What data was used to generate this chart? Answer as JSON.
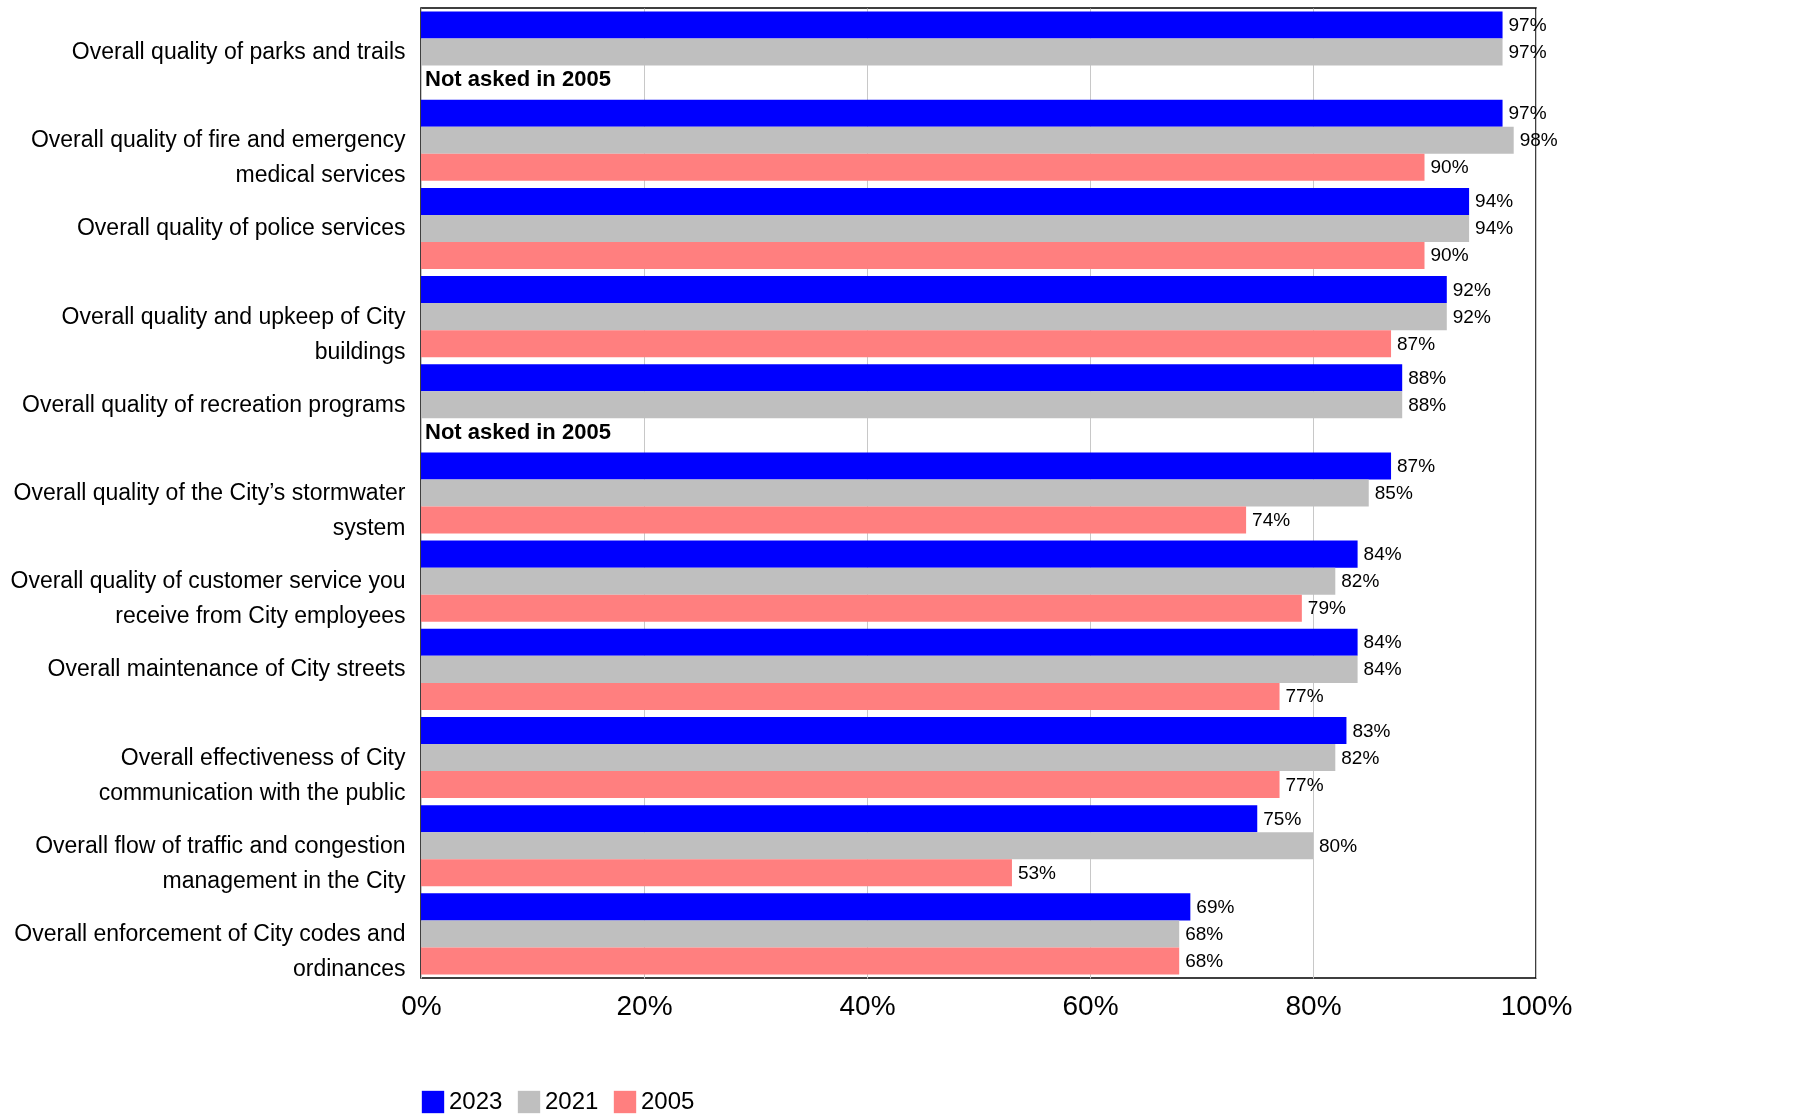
{
  "chart_data": {
    "type": "bar",
    "orientation": "horizontal",
    "categories": [
      "Overall quality of parks and trails",
      "Overall quality of fire and emergency medical services",
      "Overall quality of police services",
      "Overall quality and upkeep of City buildings",
      "Overall quality of recreation programs",
      "Overall quality of the City’s stormwater system",
      "Overall quality of customer service you receive from City employees",
      "Overall maintenance of City streets",
      "Overall effectiveness of City communication with the public",
      "Overall flow of traffic and congestion management in the City",
      "Overall enforcement of City codes and ordinances"
    ],
    "series": [
      {
        "name": "2023",
        "color": "#0000ff",
        "values": [
          97,
          97,
          94,
          92,
          88,
          87,
          84,
          84,
          83,
          75,
          69
        ],
        "value_labels": [
          "97%",
          "97%",
          "94%",
          "92%",
          "88%",
          "87%",
          "84%",
          "84%",
          "83%",
          "75%",
          "69%"
        ]
      },
      {
        "name": "2021",
        "color": "#bfbfbf",
        "values": [
          97,
          98,
          94,
          92,
          88,
          85,
          82,
          84,
          82,
          80,
          68
        ],
        "value_labels": [
          "97%",
          "98%",
          "94%",
          "92%",
          "88%",
          "85%",
          "82%",
          "84%",
          "82%",
          "80%",
          "68%"
        ]
      },
      {
        "name": "2005",
        "color": "#ff7f7f",
        "values": [
          null,
          90,
          90,
          87,
          null,
          74,
          79,
          77,
          77,
          53,
          68
        ],
        "value_labels": [
          null,
          "90%",
          "90%",
          "87%",
          null,
          "74%",
          "79%",
          "77%",
          "77%",
          "53%",
          "68%"
        ]
      }
    ],
    "xlim": [
      0,
      100
    ],
    "xticks": [
      {
        "value": 0,
        "label": "0%"
      },
      {
        "value": 20,
        "label": "20%"
      },
      {
        "value": 40,
        "label": "40%"
      },
      {
        "value": 60,
        "label": "60%"
      },
      {
        "value": 80,
        "label": "80%"
      },
      {
        "value": 100,
        "label": "100%"
      }
    ],
    "grid": "x",
    "legend": "bottom",
    "annotations": [
      {
        "text": "Not asked in 2005",
        "x": 0,
        "y": "Overall quality of parks and trails"
      },
      {
        "text": "Not asked in 2005",
        "x": 0,
        "y": "Overall quality of recreation programs"
      }
    ]
  }
}
